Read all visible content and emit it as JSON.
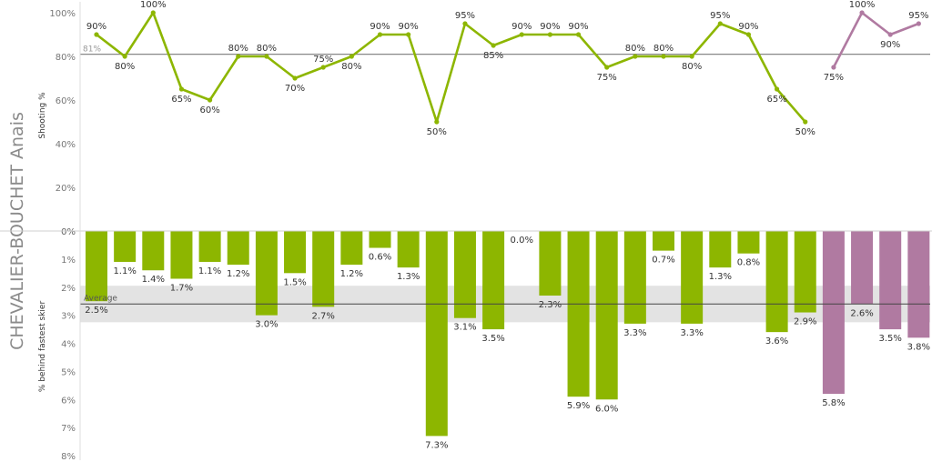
{
  "athlete_name": "CHEVALIER-BOUCHET Anais",
  "colors": {
    "primary": "#8db600",
    "secondary": "#b07aa1",
    "avg_band": "#e3e3e3",
    "ref_line": "#888888"
  },
  "chart_data": [
    {
      "type": "line",
      "ylabel": "Shooting %",
      "ylim": [
        0,
        100
      ],
      "y_ticks": [
        "0%",
        "20%",
        "40%",
        "60%",
        "80%",
        "100%"
      ],
      "reference_line": {
        "value": 81,
        "label": "81%"
      },
      "series": [
        {
          "color": "#8db600",
          "start_index": 0,
          "values": [
            90,
            80,
            100,
            65,
            60,
            80,
            80,
            70,
            75,
            80,
            90,
            90,
            50,
            95,
            85,
            90,
            90,
            90,
            75,
            80,
            80,
            80,
            95,
            90,
            65,
            50
          ]
        },
        {
          "color": "#b07aa1",
          "start_index": 26,
          "values": [
            75,
            100,
            90,
            95
          ]
        }
      ]
    },
    {
      "type": "bar",
      "ylabel": "% behind fastest skier",
      "ylim": [
        0,
        8
      ],
      "y_ticks": [
        "0%",
        "1%",
        "2%",
        "3%",
        "4%",
        "5%",
        "6%",
        "7%",
        "8%"
      ],
      "average_band": {
        "label": "Average",
        "value": 2.6,
        "low": 1.95,
        "high": 3.25
      },
      "values": [
        2.5,
        1.1,
        1.4,
        1.7,
        1.1,
        1.2,
        3.0,
        1.5,
        2.7,
        1.2,
        0.6,
        1.3,
        7.3,
        3.1,
        3.5,
        0.0,
        2.3,
        5.9,
        6.0,
        3.3,
        0.7,
        3.3,
        1.3,
        0.8,
        3.6,
        2.9,
        5.8,
        2.6,
        3.5,
        3.8
      ],
      "labels": [
        "2.5%",
        "1.1%",
        "1.4%",
        "1.7%",
        "1.1%",
        "1.2%",
        "3.0%",
        "1.5%",
        "2.7%",
        "1.2%",
        "0.6%",
        "1.3%",
        "7.3%",
        "3.1%",
        "3.5%",
        "0.0%",
        "2.3%",
        "5.9%",
        "6.0%",
        "3.3%",
        "0.7%",
        "3.3%",
        "1.3%",
        "0.8%",
        "3.6%",
        "2.9%",
        "5.8%",
        "2.6%",
        "3.5%",
        "3.8%"
      ],
      "colors": [
        "#8db600",
        "#8db600",
        "#8db600",
        "#8db600",
        "#8db600",
        "#8db600",
        "#8db600",
        "#8db600",
        "#8db600",
        "#8db600",
        "#8db600",
        "#8db600",
        "#8db600",
        "#8db600",
        "#8db600",
        "#8db600",
        "#8db600",
        "#8db600",
        "#8db600",
        "#8db600",
        "#8db600",
        "#8db600",
        "#8db600",
        "#8db600",
        "#8db600",
        "#8db600",
        "#b07aa1",
        "#b07aa1",
        "#b07aa1",
        "#b07aa1"
      ]
    }
  ]
}
